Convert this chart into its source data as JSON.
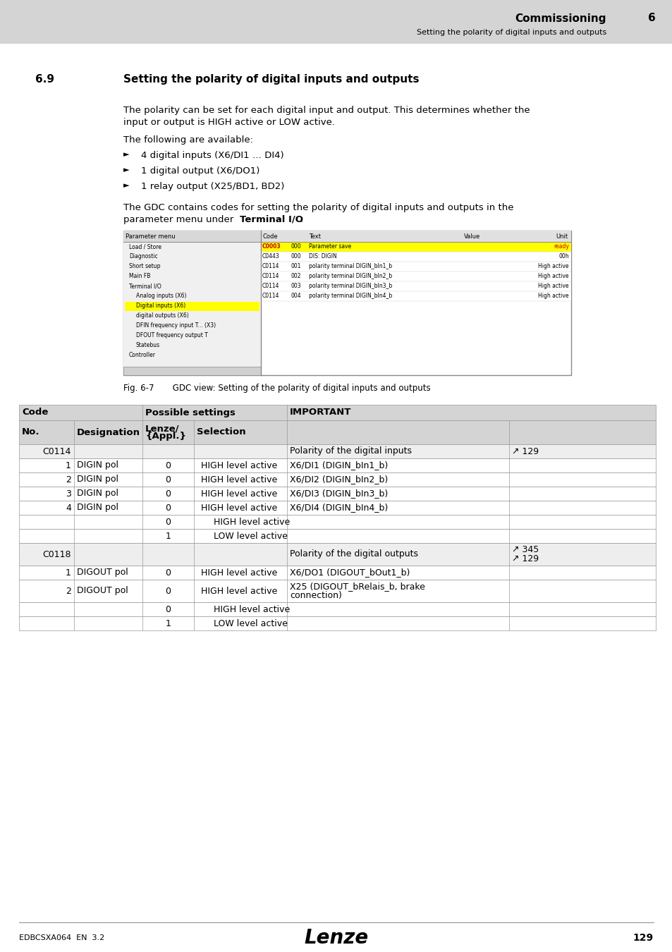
{
  "page_bg": "#e0e0e0",
  "content_bg": "#ffffff",
  "header_bg": "#d4d4d4",
  "header_title": "Commissioning",
  "header_chapter": "6",
  "header_subtitle": "Setting the polarity of digital inputs and outputs",
  "section_number": "6.9",
  "section_title": "Setting the polarity of digital inputs and outputs",
  "body_text1a": "The polarity can be set for each digital input and output. This determines whether the",
  "body_text1b": "input or output is HIGH active or LOW active.",
  "body_text2": "The following are available:",
  "bullets": [
    "4 digital inputs (X6/DI1 … DI4)",
    "1 digital output (X6/DO1)",
    "1 relay output (X25/BD1, BD2)"
  ],
  "body_text3a": "The GDC contains codes for setting the polarity of digital inputs and outputs in the",
  "body_text3b_normal": "parameter menu under ",
  "body_text3b_bold": "Terminal I/O",
  "body_text3b_end": ":",
  "fig_caption": "Fig. 6-7       GDC view: Setting of the polarity of digital inputs and outputs",
  "footer_left": "EDBCSXA064  EN  3.2",
  "footer_page": "129",
  "scr_tree": [
    {
      "depth": 0,
      "label": "Load / Store",
      "highlight": false
    },
    {
      "depth": 0,
      "label": "Diagnostic",
      "highlight": false
    },
    {
      "depth": 0,
      "label": "Short setup",
      "highlight": false
    },
    {
      "depth": 0,
      "label": "Main FB",
      "highlight": false
    },
    {
      "depth": 0,
      "label": "Terminal I/O",
      "highlight": false
    },
    {
      "depth": 1,
      "label": "Analog inputs (X6)",
      "highlight": false
    },
    {
      "depth": 1,
      "label": "Digital inputs (X6)",
      "highlight": true
    },
    {
      "depth": 1,
      "label": "digital outputs (X6)",
      "highlight": false
    },
    {
      "depth": 1,
      "label": "DFIN frequency input T... (X3)",
      "highlight": false
    },
    {
      "depth": 1,
      "label": "DFOUT frequency output T",
      "highlight": false
    },
    {
      "depth": 1,
      "label": "Statebus",
      "highlight": false
    },
    {
      "depth": 0,
      "label": "Controller",
      "highlight": false
    }
  ],
  "scr_rows": [
    {
      "code": "C0003",
      "num": "000",
      "text": "Parameter save",
      "value": "ready",
      "highlight": true
    },
    {
      "code": "C0443",
      "num": "000",
      "text": "DIS: DIGIN",
      "value": "00h",
      "highlight": false
    },
    {
      "code": "C0114",
      "num": "001",
      "text": "polarity terminal DIGIN_bIn1_b",
      "value": "High active",
      "highlight": false
    },
    {
      "code": "C0114",
      "num": "002",
      "text": "polarity terminal DIGIN_bIn2_b",
      "value": "High active",
      "highlight": false
    },
    {
      "code": "C0114",
      "num": "003",
      "text": "polarity terminal DIGIN_bIn3_b",
      "value": "High active",
      "highlight": false
    },
    {
      "code": "C0114",
      "num": "004",
      "text": "polarity terminal DIGIN_bIn4_b",
      "value": "High active",
      "highlight": false
    }
  ],
  "table_rows": [
    {
      "col0": "C0114",
      "col1": "",
      "col2": "",
      "col3": "",
      "col4": "Polarity of the digital inputs",
      "col5": "↗ 129",
      "is_code_row": true,
      "indent_sel": false
    },
    {
      "col0": "1",
      "col1": "DIGIN pol",
      "col2": "0",
      "col3": "HIGH level active",
      "col4": "X6/DI1 (DIGIN_bIn1_b)",
      "col5": "",
      "is_code_row": false,
      "indent_sel": false
    },
    {
      "col0": "2",
      "col1": "DIGIN pol",
      "col2": "0",
      "col3": "HIGH level active",
      "col4": "X6/DI2 (DIGIN_bIn2_b)",
      "col5": "",
      "is_code_row": false,
      "indent_sel": false
    },
    {
      "col0": "3",
      "col1": "DIGIN pol",
      "col2": "0",
      "col3": "HIGH level active",
      "col4": "X6/DI3 (DIGIN_bIn3_b)",
      "col5": "",
      "is_code_row": false,
      "indent_sel": false
    },
    {
      "col0": "4",
      "col1": "DIGIN pol",
      "col2": "0",
      "col3": "HIGH level active",
      "col4": "X6/DI4 (DIGIN_bIn4_b)",
      "col5": "",
      "is_code_row": false,
      "indent_sel": false
    },
    {
      "col0": "",
      "col1": "",
      "col2": "0",
      "col3": "HIGH level active",
      "col4": "",
      "col5": "",
      "is_code_row": false,
      "indent_sel": true
    },
    {
      "col0": "",
      "col1": "",
      "col2": "1",
      "col3": "LOW level active",
      "col4": "",
      "col5": "",
      "is_code_row": false,
      "indent_sel": true
    },
    {
      "col0": "C0118",
      "col1": "",
      "col2": "",
      "col3": "",
      "col4": "Polarity of the digital outputs",
      "col5": "↗ 345\n↗ 129",
      "is_code_row": true,
      "indent_sel": false
    },
    {
      "col0": "1",
      "col1": "DIGOUT pol",
      "col2": "0",
      "col3": "HIGH level active",
      "col4": "X6/DO1 (DIGOUT_bOut1_b)",
      "col5": "",
      "is_code_row": false,
      "indent_sel": false
    },
    {
      "col0": "2",
      "col1": "DIGOUT pol",
      "col2": "0",
      "col3": "HIGH level active",
      "col4": "X25 (DIGOUT_bRelais_b, brake\nconnection)",
      "col5": "",
      "is_code_row": false,
      "indent_sel": false
    },
    {
      "col0": "",
      "col1": "",
      "col2": "0",
      "col3": "HIGH level active",
      "col4": "",
      "col5": "",
      "is_code_row": false,
      "indent_sel": true
    },
    {
      "col0": "",
      "col1": "",
      "col2": "1",
      "col3": "LOW level active",
      "col4": "",
      "col5": "",
      "is_code_row": false,
      "indent_sel": true
    }
  ]
}
